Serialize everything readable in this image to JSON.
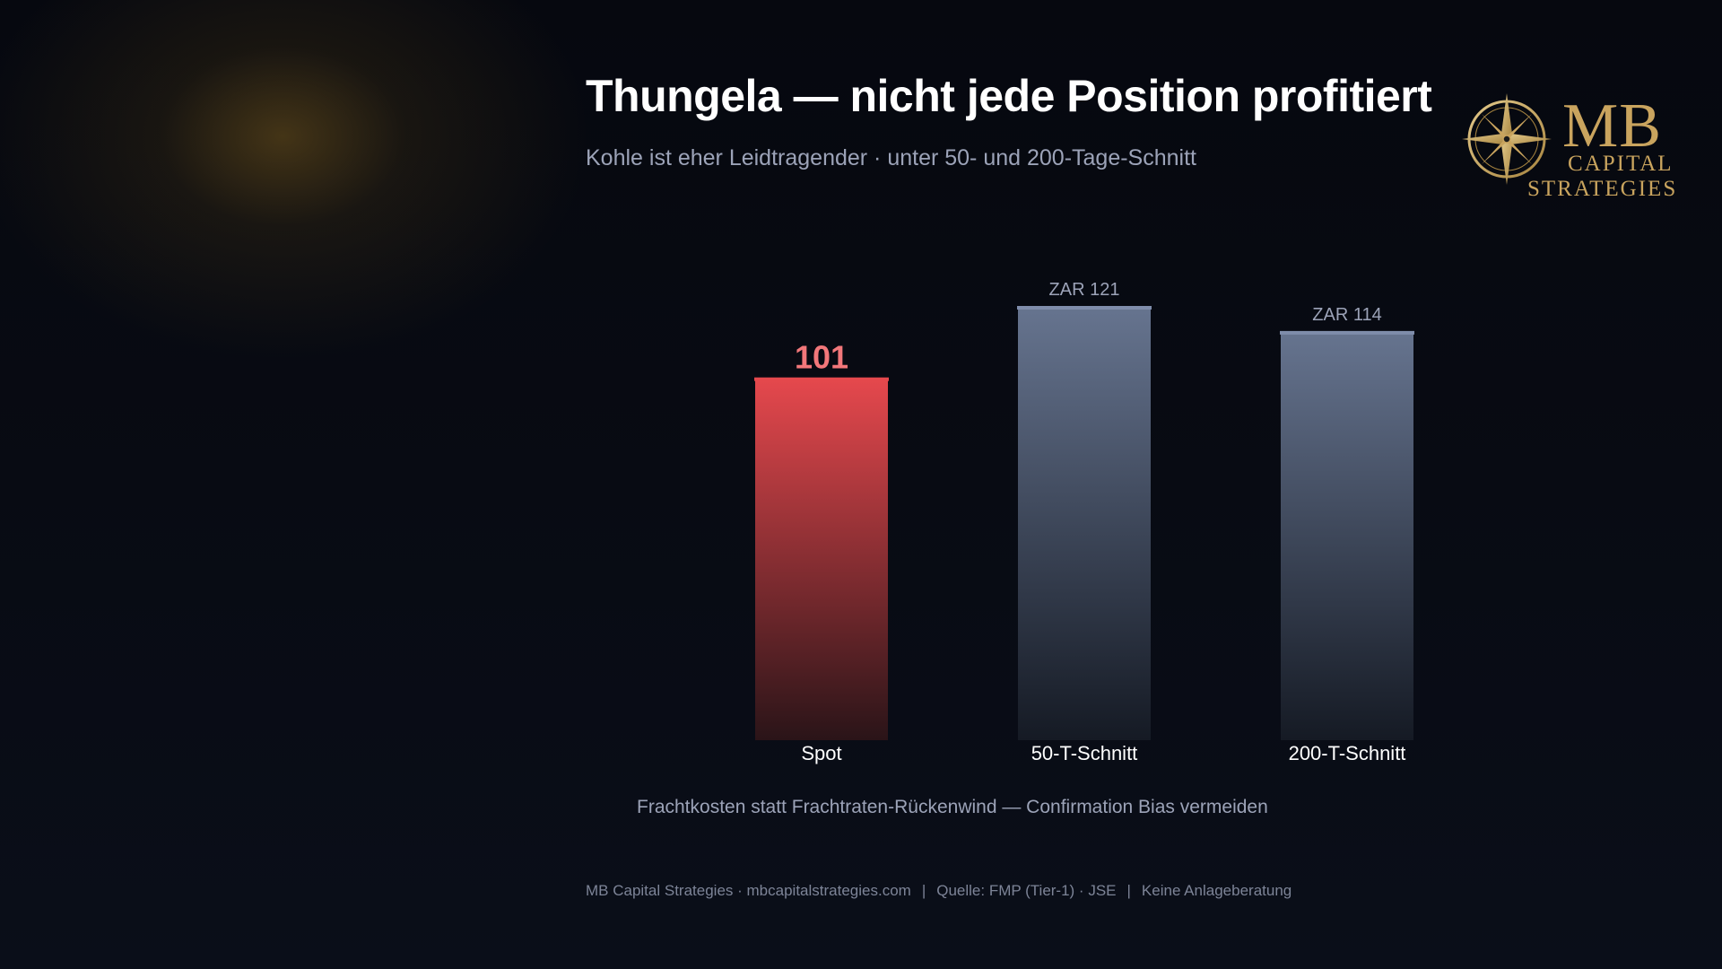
{
  "header": {
    "title": "Thungela — nicht jede Position profitiert",
    "subtitle": "Kohle ist eher Leidtragender · unter 50- und 200-Tage-Schnitt"
  },
  "logo": {
    "mb": "MB",
    "capital": "CAPITAL",
    "strategies": "STRATEGIES",
    "icon": "compass-rose-icon"
  },
  "chart_data": {
    "type": "bar",
    "categories": [
      "Spot",
      "50-T-Schnitt",
      "200-T-Schnitt"
    ],
    "values": [
      101,
      121,
      114
    ],
    "value_labels": [
      "101",
      "ZAR 121",
      "ZAR 114"
    ],
    "ylim": [
      0,
      121
    ],
    "colors": [
      "#e5484d",
      "#6a7896",
      "#6a7896"
    ],
    "highlight_label_color": "#f2777a",
    "label_color": "#9ca3b8",
    "title": "",
    "xlabel": "",
    "ylabel": "",
    "grid": false
  },
  "note": "Frachtkosten statt Frachtraten-Rückenwind — Confirmation Bias vermeiden",
  "footer": {
    "brand": "MB Capital Strategies · mbcapitalstrategies.com",
    "source": "Quelle: FMP (Tier-1) · JSE",
    "disclaimer": "Keine Anlageberatung",
    "separator": "|"
  },
  "colors": {
    "accent_gold": "#c9a45e",
    "background": "#080b14"
  }
}
